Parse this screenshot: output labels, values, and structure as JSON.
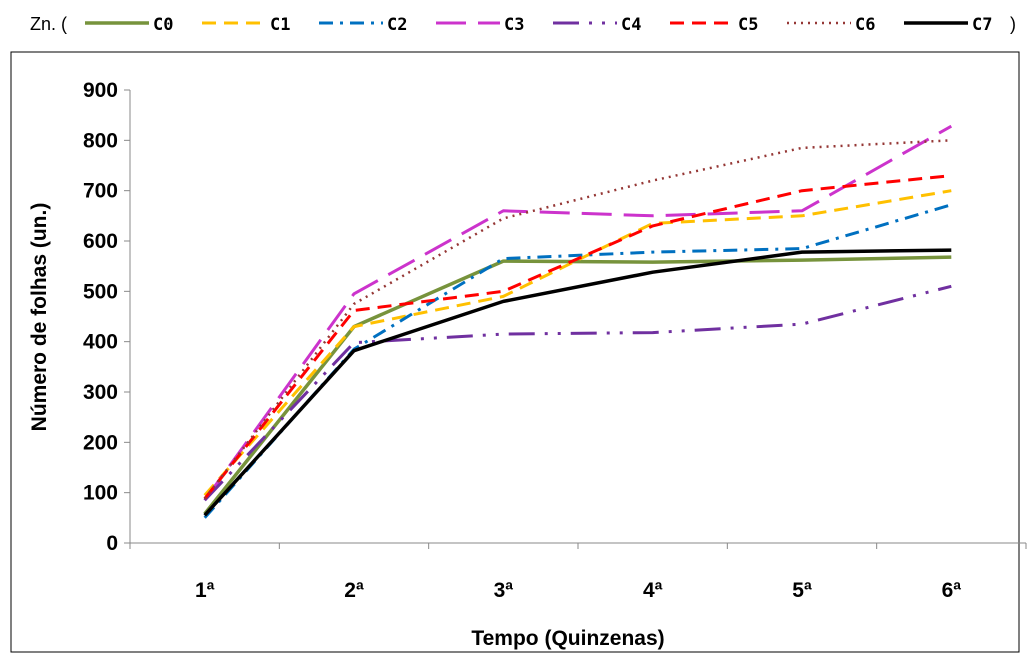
{
  "legend": {
    "prefix": "Zn. (",
    "suffix": ")"
  },
  "chart_data": {
    "type": "line",
    "title": "",
    "xlabel": "Tempo (Quinzenas)",
    "ylabel": "Número de folhas (un.)",
    "categories": [
      "1ª",
      "2ª",
      "3ª",
      "4ª",
      "5ª",
      "6ª"
    ],
    "ylim": [
      0,
      900
    ],
    "yticks": [
      0,
      100,
      200,
      300,
      400,
      500,
      600,
      700,
      800,
      900
    ],
    "grid": false,
    "legend_position": "top",
    "series": [
      {
        "name": "C0",
        "values": [
          58,
          430,
          560,
          558,
          562,
          568
        ],
        "color": "#77933C",
        "dash": "solid"
      },
      {
        "name": "C1",
        "values": [
          95,
          430,
          490,
          635,
          650,
          700
        ],
        "color": "#FFC000",
        "dash": "dash"
      },
      {
        "name": "C2",
        "values": [
          50,
          385,
          565,
          578,
          585,
          672
        ],
        "color": "#0070C0",
        "dash": "dashdot"
      },
      {
        "name": "C3",
        "values": [
          85,
          495,
          660,
          650,
          660,
          828
        ],
        "color": "#CC33CC",
        "dash": "longdash"
      },
      {
        "name": "C4",
        "values": [
          85,
          398,
          415,
          418,
          435,
          510
        ],
        "color": "#7030A0",
        "dash": "longdashdotdot"
      },
      {
        "name": "C5",
        "values": [
          88,
          462,
          500,
          630,
          700,
          730
        ],
        "color": "#FF0000",
        "dash": "dash"
      },
      {
        "name": "C6",
        "values": [
          88,
          475,
          645,
          720,
          785,
          800
        ],
        "color": "#953735",
        "dash": "dot"
      },
      {
        "name": "C7",
        "values": [
          55,
          382,
          480,
          538,
          578,
          582
        ],
        "color": "#000000",
        "dash": "solid"
      }
    ]
  }
}
